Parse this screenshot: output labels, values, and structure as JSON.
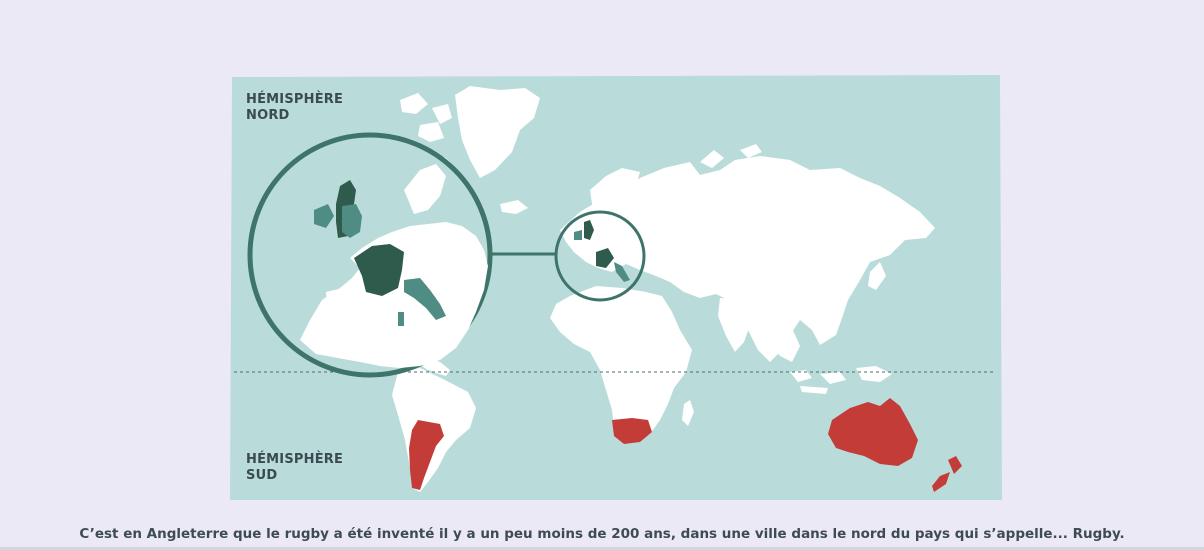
{
  "map": {
    "north_label": [
      "HÉMISPHÈRE",
      "NORD"
    ],
    "south_label": [
      "HÉMISPHÈRE",
      "SUD"
    ],
    "colors": {
      "background": "#ece9f7",
      "ocean": "#b9dcdb",
      "land": "#ffffff",
      "highlight_red": "#c43c38",
      "highlight_dark": "#2f5b4c",
      "highlight_mid": "#4f8c84",
      "circle_stroke": "#3e7469"
    },
    "highlighted_regions": [
      "england",
      "scotland",
      "wales",
      "ireland",
      "france",
      "italy",
      "argentina",
      "south-africa",
      "australia",
      "new-zealand"
    ]
  },
  "caption": "C’est en Angleterre que le rugby a été inventé il y a un peu moins de 200 ans, dans une ville dans le nord du pays qui s’appelle... Rugby."
}
